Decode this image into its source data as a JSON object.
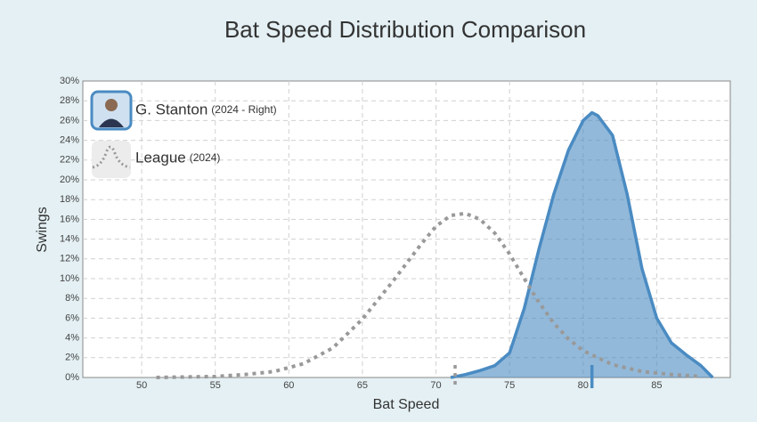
{
  "chart_data": {
    "type": "area",
    "title": "Bat Speed Distribution Comparison",
    "x_label": "Bat Speed",
    "y_label": "Swings",
    "xlim": [
      46,
      90
    ],
    "ylim": [
      0,
      30
    ],
    "xticks": [
      50,
      55,
      60,
      65,
      70,
      75,
      80,
      85
    ],
    "yticks": [
      {
        "value": 0,
        "label": "0%"
      },
      {
        "value": 2,
        "label": "2%"
      },
      {
        "value": 4,
        "label": "4%"
      },
      {
        "value": 6,
        "label": "6%"
      },
      {
        "value": 8,
        "label": "8%"
      },
      {
        "value": 10,
        "label": "10%"
      },
      {
        "value": 12,
        "label": "12%"
      },
      {
        "value": 14,
        "label": "14%"
      },
      {
        "value": 16,
        "label": "16%"
      },
      {
        "value": 18,
        "label": "18%"
      },
      {
        "value": 20,
        "label": "20%"
      },
      {
        "value": 22,
        "label": "22%"
      },
      {
        "value": 24,
        "label": "24%"
      },
      {
        "value": 26,
        "label": "26%"
      },
      {
        "value": 28,
        "label": "28%"
      },
      {
        "value": 30,
        "label": "30%"
      }
    ],
    "grid": true,
    "legend": "upper left",
    "series": [
      {
        "name": "G. Stanton",
        "note": "(2024 - Right)",
        "color": "#4a8bc2",
        "fill": true,
        "x": [
          71,
          72,
          73,
          74,
          75,
          76,
          77,
          78,
          79,
          80,
          80.6,
          81,
          82,
          83,
          84,
          85,
          86,
          87,
          88,
          88.8
        ],
        "values": [
          0,
          0.3,
          0.7,
          1.2,
          2.5,
          7,
          13,
          18.5,
          23,
          26,
          26.8,
          26.5,
          24.5,
          18.5,
          11,
          6,
          3.5,
          2.3,
          1.2,
          0
        ],
        "median": 80.6
      },
      {
        "name": "League",
        "note": "(2024)",
        "color": "#999999",
        "fill": false,
        "x": [
          51,
          53,
          55,
          57,
          59,
          61,
          63,
          65,
          67,
          69,
          70,
          71,
          72,
          73,
          74,
          75,
          76,
          77,
          78,
          79,
          80,
          82,
          84,
          86,
          88
        ],
        "values": [
          0,
          0.05,
          0.1,
          0.3,
          0.6,
          1.4,
          3.0,
          5.9,
          9.6,
          13.5,
          15.3,
          16.4,
          16.6,
          16.0,
          14.6,
          12.5,
          10.0,
          7.6,
          5.5,
          3.9,
          2.7,
          1.3,
          0.6,
          0.3,
          0.1
        ],
        "median": 71.3
      }
    ]
  }
}
